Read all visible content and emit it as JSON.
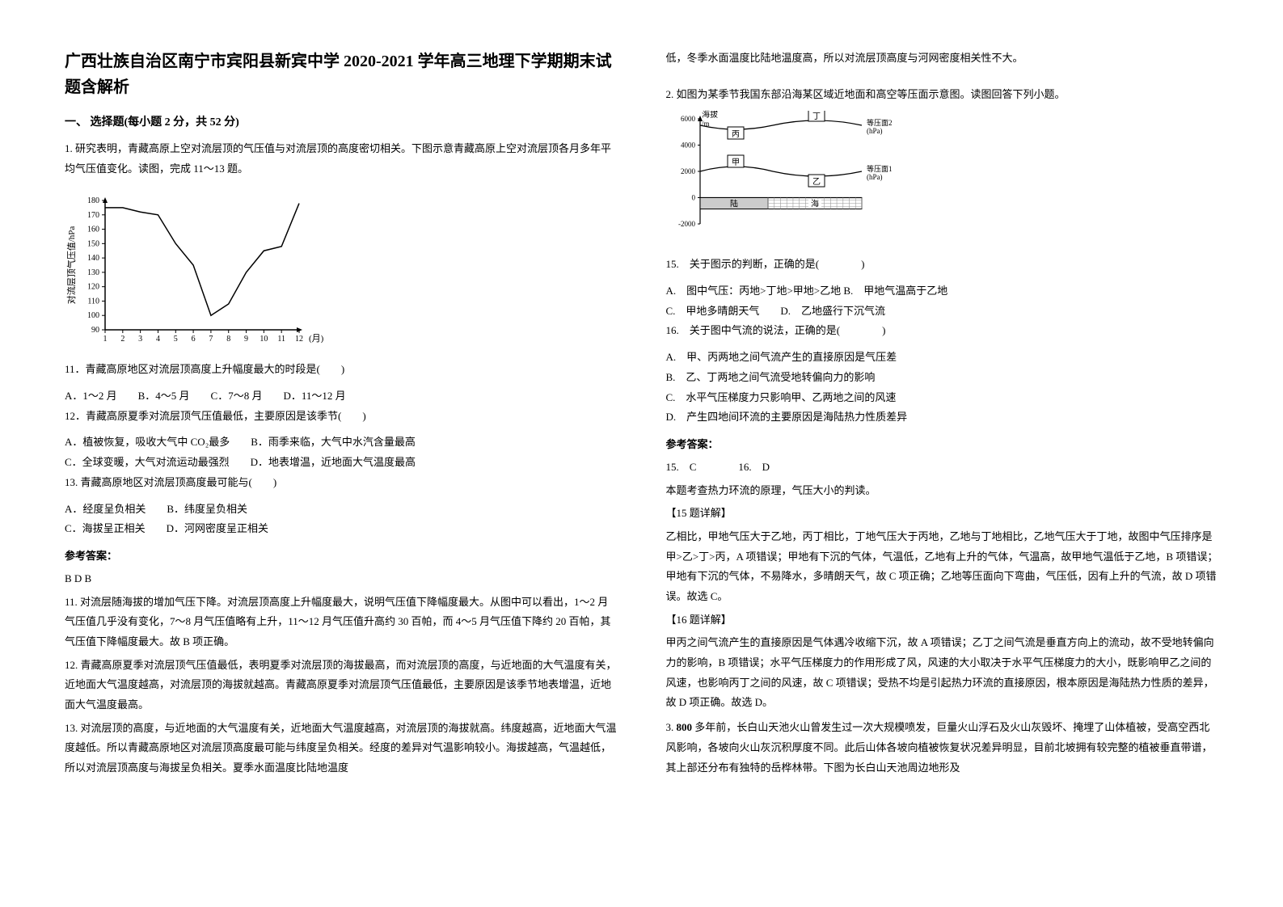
{
  "document": {
    "title": "广西壮族自治区南宁市宾阳县新宾中学 2020-2021 学年高三地理下学期期末试题含解析",
    "section_heading": "一、 选择题(每小题 2 分，共 52 分)",
    "q1_intro": "1. 研究表明，青藏高原上空对流层顶的气压值与对流层顶的高度密切相关。下图示意青藏高原上空对流层顶各月多年平均气压值变化。读图，完成 11～13 题。",
    "chart1": {
      "type": "line",
      "x_label": "(月)",
      "y_label": "对流层顶气压值/hPa",
      "x_values": [
        1,
        2,
        3,
        4,
        5,
        6,
        7,
        8,
        9,
        10,
        11,
        12
      ],
      "y_values": [
        175,
        175,
        172,
        170,
        150,
        135,
        100,
        108,
        130,
        145,
        148,
        178
      ],
      "y_min": 90,
      "y_max": 180,
      "y_step": 10,
      "line_color": "#000000",
      "axis_color": "#000000",
      "label_fontsize": 11,
      "axis_fontsize": 10
    },
    "q11": "11．青藏高原地区对流层顶高度上升幅度最大的时段是(　　)",
    "q11_options": "A．1～2 月　　B．4～5 月　　C．7～8 月　　D．11～12 月",
    "q12": "12．青藏高原夏季对流层顶气压值最低，主要原因是该季节(　　)",
    "q12_opt_a": "A．植被恢复，吸收大气中 CO₂最多　　B．雨季来临，大气中水汽含量最高",
    "q12_opt_b": "C．全球变暖，大气对流运动最强烈　　D．地表增温，近地面大气温度最高",
    "q13": "13. 青藏高原地区对流层顶高度最可能与(　　)",
    "q13_opt_a": "A．经度呈负相关　　B．纬度呈负相关",
    "q13_opt_b": "C．海拔呈正相关　　D．河网密度呈正相关",
    "answer_label_1": "参考答案：",
    "answer_1": "B D B",
    "exp11": "11. 对流层随海拔的增加气压下降。对流层顶高度上升幅度最大，说明气压值下降幅度最大。从图中可以看出，1～2 月气压值几乎没有变化，7～8 月气压值略有上升，11～12 月气压值升高约 30 百帕，而 4～5 月气压值下降约 20 百帕，其气压值下降幅度最大。故 B 项正确。",
    "exp12": "12. 青藏高原夏季对流层顶气压值最低，表明夏季对流层顶的海拔最高，而对流层顶的高度，与近地面的大气温度有关，近地面大气温度越高，对流层顶的海拔就越高。青藏高原夏季对流层顶气压值最低，主要原因是该季节地表增温，近地面大气温度最高。",
    "exp13": "13. 对流层顶的高度，与近地面的大气温度有关，近地面大气温度越高，对流层顶的海拔就高。纬度越高，近地面大气温度越低。所以青藏高原地区对流层顶高度最可能与纬度呈负相关。经度的差异对气温影响较小。海拔越高，气温越低，所以对流层顶高度与海拔呈负相关。夏季水面温度比陆地温度",
    "exp13_cont": "低，冬季水面温度比陆地温度高，所以对流层顶高度与河网密度相关性不大。",
    "q2_intro": "2. 如图为某季节我国东部沿海某区域近地面和高空等压面示意图。读图回答下列小题。",
    "diagram2": {
      "type": "cross-section",
      "y_label": "海拔/m",
      "y_values": [
        -2000,
        0,
        2000,
        4000,
        6000
      ],
      "labels": {
        "jia": "甲",
        "yi": "乙",
        "bing": "丙",
        "ding": "丁",
        "land": "陆",
        "sea": "海",
        "surface1": "等压面1 (hPa)",
        "surface2": "等压面2 (hPa)"
      },
      "colors": {
        "axis": "#000000",
        "line": "#000000",
        "land_fill": "#cccccc",
        "sea_pattern": "#999999",
        "box_fill": "#ffffff"
      },
      "fontsize": 10
    },
    "q15": "15.　关于图示的判断，正确的是(　　　　)",
    "q15_opt_a": "A.　图中气压：丙地>丁地>甲地>乙地 B.　甲地气温高于乙地",
    "q15_opt_b": "C.　甲地多晴朗天气　　D.　乙地盛行下沉气流",
    "q16": "16.　关于图中气流的说法，正确的是(　　　　)",
    "q16_opt_a": "A.　甲、丙两地之间气流产生的直接原因是气压差",
    "q16_opt_b": "B.　乙、丁两地之间气流受地转偏向力的影响",
    "q16_opt_c": "C.　水平气压梯度力只影响甲、乙两地之间的风速",
    "q16_opt_d": "D.　产生四地间环流的主要原因是海陆热力性质差异",
    "answer_label_2": "参考答案：",
    "answer_2": "15.　C　　　　16.　D",
    "answer_2_note": "本题考查热力环流的原理，气压大小的判读。",
    "exp15_label": "【15 题详解】",
    "exp15": "乙相比，甲地气压大于乙地，丙丁相比，丁地气压大于丙地，乙地与丁地相比，乙地气压大于丁地，故图中气压排序是甲>乙>丁>丙，A 项错误；甲地有下沉的气体，气温低，乙地有上升的气体，气温高，故甲地气温低于乙地，B 项错误；甲地有下沉的气体，不易降水，多晴朗天气，故 C 项正确；乙地等压面向下弯曲，气压低，因有上升的气流，故 D 项错误。故选 C。",
    "exp16_label": "【16 题详解】",
    "exp16": "甲丙之间气流产生的直接原因是气体遇冷收缩下沉，故 A 项错误；乙丁之间气流是垂直方向上的流动，故不受地转偏向力的影响，B 项错误；水平气压梯度力的作用形成了风，风速的大小取决于水平气压梯度力的大小，既影响甲乙之间的风速，也影响丙丁之间的风速，故 C 项错误；受热不均是引起热力环流的直接原因，根本原因是海陆热力性质的差异，故 D 项正确。故选 D。",
    "q3_intro": "3. 800 多年前，长白山天池火山曾发生过一次大规模喷发，巨量火山浮石及火山灰毁坏、掩埋了山体植被，受高空西北风影响，各坡向火山灰沉积厚度不同。此后山体各坡向植被恢复状况差异明显，目前北坡拥有较完整的植被垂直带谱，其上部还分布有独特的岳桦林带。下图为长白山天池周边地形及"
  }
}
